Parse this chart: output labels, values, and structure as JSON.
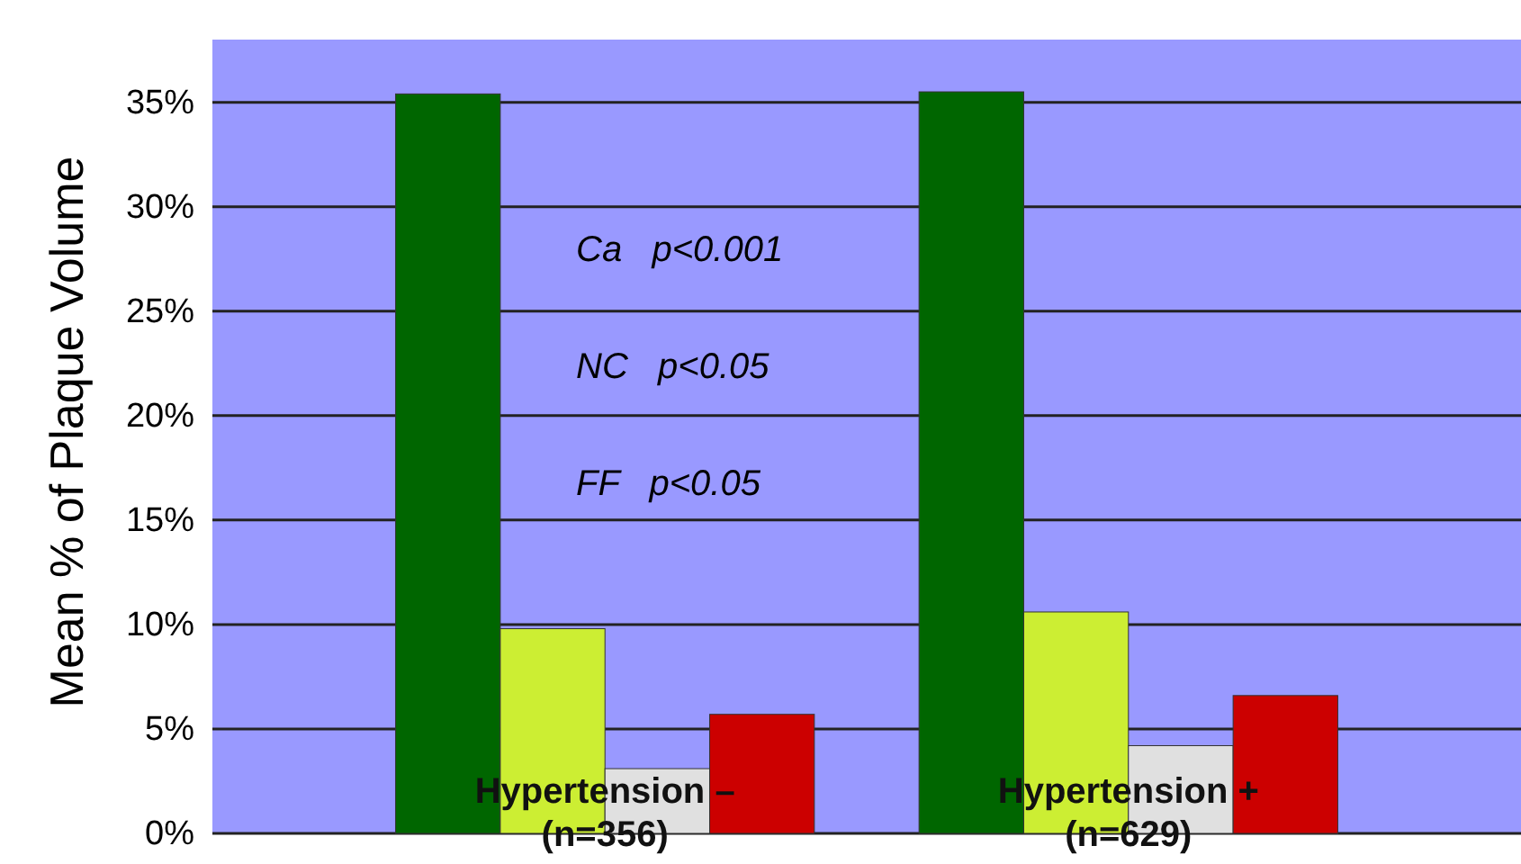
{
  "chart_data": {
    "type": "bar",
    "ylabel": "Mean % of Plaque Volume",
    "categories": [
      "Hypertension –\n(n=356)",
      "Hypertension +\n(n=629)"
    ],
    "series": [
      {
        "color": "#006600",
        "values": [
          35.4,
          35.5
        ]
      },
      {
        "color": "#ccee33",
        "values": [
          9.8,
          10.6
        ]
      },
      {
        "color": "#e0e0e0",
        "values": [
          3.1,
          4.2
        ]
      },
      {
        "color": "#cc0000",
        "values": [
          5.7,
          6.6
        ]
      }
    ],
    "ylim": [
      0,
      38
    ],
    "yticks": [
      {
        "value": 0,
        "label": "0%"
      },
      {
        "value": 5,
        "label": "5%"
      },
      {
        "value": 10,
        "label": "10%"
      },
      {
        "value": 15,
        "label": "15%"
      },
      {
        "value": 20,
        "label": "20%"
      },
      {
        "value": 25,
        "label": "25%"
      },
      {
        "value": 30,
        "label": "30%"
      },
      {
        "value": 35,
        "label": "35%"
      }
    ],
    "grid": "y",
    "annotations": [
      "Ca   p<0.001",
      "NC   p<0.05",
      "FF   p<0.05"
    ]
  }
}
